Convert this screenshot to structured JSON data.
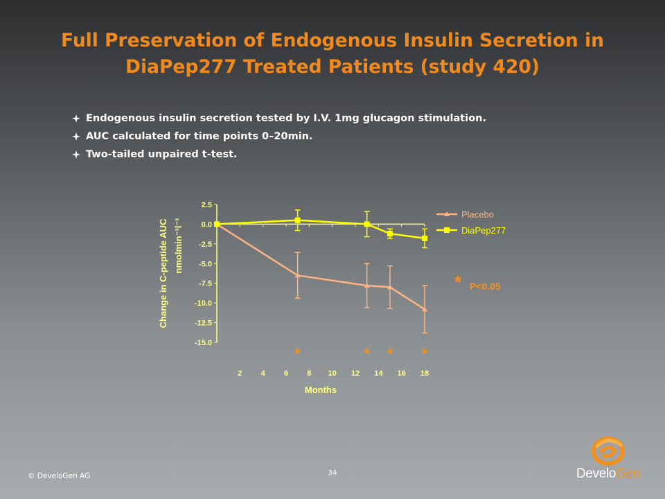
{
  "title": "Full Preservation of Endogenous Insulin Secretion in DiaPep277 Treated Patients (study 420)",
  "bullets": [
    "Endogenous insulin secretion tested by I.V. 1mg glucagon stimulation.",
    "AUC calculated for time points 0–20min.",
    "Two-tailed unpaired t-test."
  ],
  "colors": {
    "title": "#f0891e",
    "placebo": "#f9b385",
    "diapep": "#ffff00",
    "star": "#f0901e",
    "axis": "#ffff80"
  },
  "chart_data": {
    "type": "line",
    "xlabel": "Months",
    "ylabel": "Change in C-peptide AUC",
    "ylabel_unit": "nmolmin⁻¹l⁻¹",
    "xlim": [
      0,
      18
    ],
    "ylim": [
      -15,
      2.5
    ],
    "x_ticks": [
      2,
      4,
      6,
      8,
      10,
      12,
      14,
      16,
      18
    ],
    "y_ticks": [
      2.5,
      0,
      -2.5,
      -5,
      -7.5,
      -10,
      -12.5,
      -15
    ],
    "y_tick_labels": [
      "2.5",
      "0.0",
      "-2.5",
      "-5.0",
      "-7.5",
      "-10.0",
      "-12.5",
      "-15.0"
    ],
    "legend_position": "top-right",
    "series": [
      {
        "name": "Placebo",
        "marker": "triangle",
        "x": [
          0,
          7,
          13,
          15,
          18
        ],
        "y": [
          0,
          -6.5,
          -7.8,
          -8,
          -10.8
        ],
        "error": [
          0,
          2.9,
          2.8,
          2.7,
          3
        ]
      },
      {
        "name": "DiaPep277",
        "marker": "square",
        "x": [
          0,
          7,
          13,
          15,
          18
        ],
        "y": [
          0,
          0.5,
          0,
          -1.2,
          -1.8
        ],
        "error": [
          0,
          1.3,
          1.6,
          0.6,
          1.2
        ]
      }
    ],
    "significance_x": [
      7,
      13,
      15,
      18
    ],
    "significance_symbol": "*",
    "significance_note": "P<0.05"
  },
  "footer": {
    "copyright": "© DeveloGen AG",
    "page_number": "34",
    "logo_part1": "Develo",
    "logo_part2": "Gen"
  }
}
